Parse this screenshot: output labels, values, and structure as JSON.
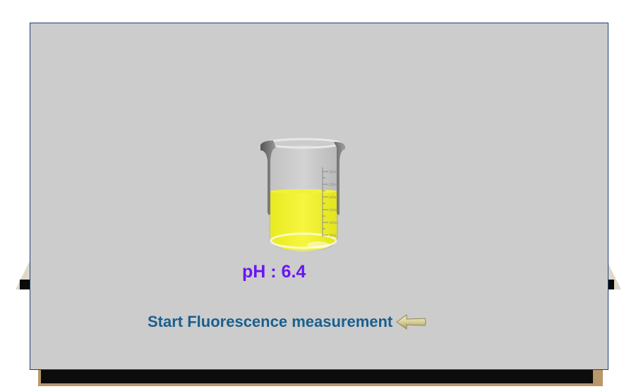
{
  "beaker": {
    "solution_color": "#f0f028",
    "scale_marks": [
      "300ml",
      "250ml",
      "200ml",
      "150ml",
      "100ml",
      "50ml"
    ]
  },
  "ph": {
    "label": "pH",
    "separator": " : ",
    "value": "6.4",
    "color": "#6b14f2"
  },
  "actions": {
    "start_label": "Start Fluorescence measurement"
  },
  "colors": {
    "panel_background": "#cccccc",
    "start_text": "#1a5f8e"
  }
}
